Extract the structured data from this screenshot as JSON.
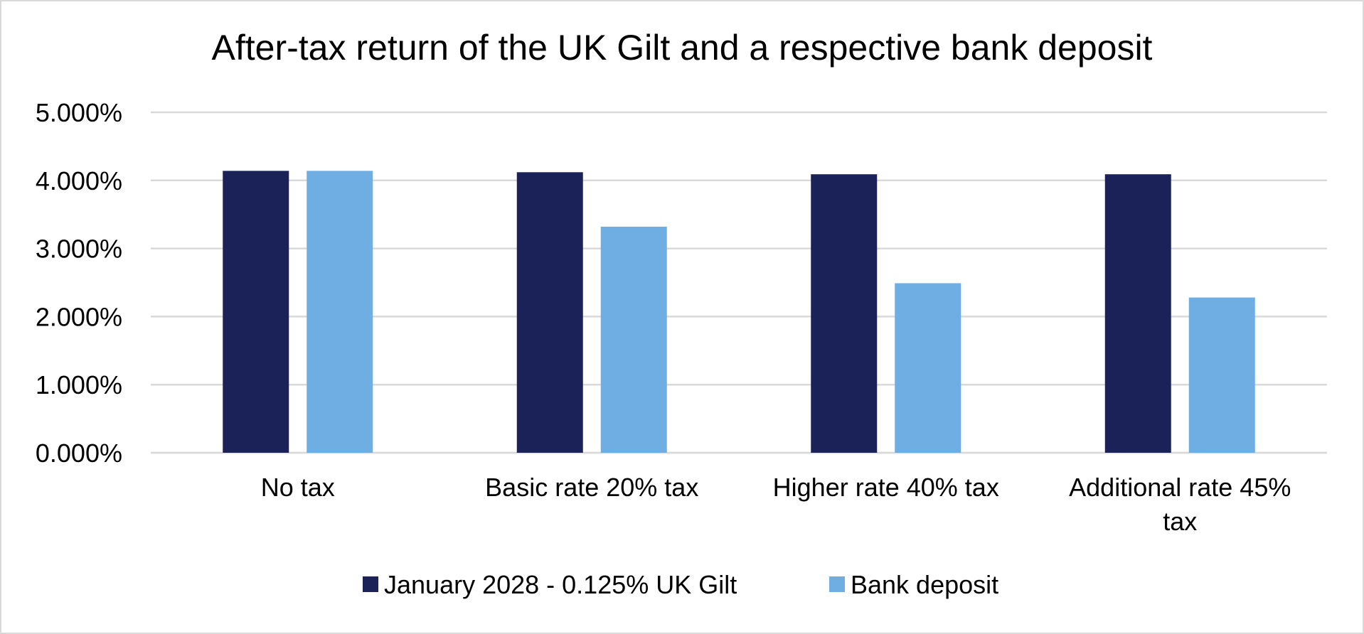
{
  "chart_data": {
    "type": "bar",
    "title": "After-tax return of the UK Gilt and a respective bank deposit",
    "xlabel": "",
    "ylabel": "",
    "categories": [
      [
        "No tax"
      ],
      [
        "Basic rate 20% tax"
      ],
      [
        "Higher rate 40% tax"
      ],
      [
        "Additional rate 45%",
        "tax"
      ]
    ],
    "series": [
      {
        "name": "January 2028 - 0.125% UK Gilt",
        "color": "#1a2258",
        "values": [
          4.14,
          4.12,
          4.09,
          4.09
        ]
      },
      {
        "name": "Bank deposit",
        "color": "#6eaee3",
        "values": [
          4.14,
          3.32,
          2.49,
          2.28
        ]
      }
    ],
    "ylim": [
      0,
      5
    ],
    "yticks": [
      0,
      1,
      2,
      3,
      4,
      5
    ],
    "ytick_labels": [
      "0.000%",
      "1.000%",
      "2.000%",
      "3.000%",
      "4.000%",
      "5.000%"
    ],
    "grid": true,
    "gridline_color": "#d9d9d9",
    "legend_position": "bottom"
  }
}
